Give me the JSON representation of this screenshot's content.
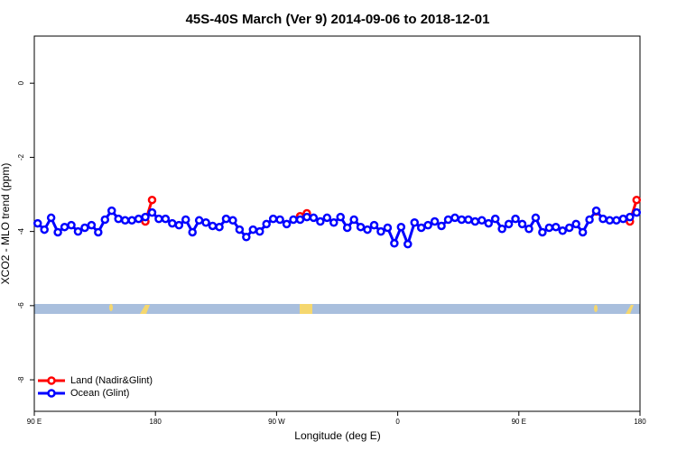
{
  "chart_data": {
    "type": "line",
    "title": "45S-40S March (Ver 9)   2014-09-06 to 2018-12-01",
    "x_label": "Longitude (deg E)",
    "y_label": "XCO2 - MLO trend (ppm)",
    "x": [
      92.5,
      97.5,
      102.5,
      107.5,
      112.5,
      117.5,
      122.5,
      127.5,
      132.5,
      137.5,
      142.5,
      147.5,
      152.5,
      157.5,
      162.5,
      167.5,
      172.5,
      177.5,
      182.5,
      187.5,
      192.5,
      197.5,
      202.5,
      207.5,
      212.5,
      217.5,
      222.5,
      227.5,
      232.5,
      237.5,
      242.5,
      247.5,
      252.5,
      257.5,
      262.5,
      267.5,
      272.5,
      277.5,
      282.5,
      287.5,
      292.5,
      297.5,
      302.5,
      307.5,
      312.5,
      317.5,
      322.5,
      327.5,
      332.5,
      337.5,
      342.5,
      347.5,
      352.5,
      357.5,
      362.5,
      367.5,
      372.5,
      377.5,
      382.5,
      387.5,
      392.5,
      397.5,
      402.5,
      407.5,
      412.5,
      417.5,
      422.5,
      427.5,
      432.5,
      437.5,
      442.5,
      447.5,
      452.5,
      457.5,
      462.5,
      467.5,
      472.5,
      477.5,
      482.5,
      487.5,
      492.5,
      497.5,
      502.5,
      507.5,
      512.5,
      517.5,
      522.5,
      527.5,
      532.5,
      537.5
    ],
    "series": [
      {
        "name": "Land (Nadir&Glint)",
        "color": "#ff0000",
        "values": [
          null,
          null,
          null,
          null,
          null,
          null,
          null,
          null,
          null,
          null,
          null,
          null,
          null,
          null,
          null,
          null,
          -3.73,
          -3.15,
          null,
          null,
          null,
          null,
          null,
          null,
          null,
          null,
          null,
          null,
          null,
          null,
          null,
          null,
          null,
          null,
          null,
          null,
          null,
          null,
          null,
          -3.59,
          -3.51,
          null,
          null,
          null,
          null,
          null,
          null,
          null,
          null,
          null,
          null,
          null,
          null,
          null,
          null,
          null,
          null,
          null,
          null,
          null,
          null,
          null,
          null,
          null,
          null,
          null,
          null,
          null,
          null,
          null,
          null,
          null,
          null,
          null,
          null,
          null,
          null,
          null,
          null,
          null,
          null,
          null,
          null,
          -3.46,
          null,
          null,
          null,
          null,
          -3.73,
          -3.15
        ]
      },
      {
        "name": "Ocean (Glint)",
        "color": "#0000ff",
        "values": [
          -3.78,
          -3.95,
          -3.63,
          -4.02,
          -3.88,
          -3.83,
          -4.0,
          -3.9,
          -3.83,
          -4.02,
          -3.68,
          -3.44,
          -3.66,
          -3.7,
          -3.7,
          -3.66,
          -3.61,
          -3.49,
          -3.66,
          -3.66,
          -3.78,
          -3.83,
          -3.68,
          -4.02,
          -3.7,
          -3.76,
          -3.85,
          -3.88,
          -3.66,
          -3.7,
          -3.95,
          -4.15,
          -3.95,
          -4.0,
          -3.8,
          -3.66,
          -3.68,
          -3.8,
          -3.68,
          -3.68,
          -3.61,
          -3.63,
          -3.73,
          -3.63,
          -3.76,
          -3.61,
          -3.9,
          -3.68,
          -3.88,
          -3.95,
          -3.83,
          -4.0,
          -3.9,
          -4.32,
          -3.88,
          -4.34,
          -3.76,
          -3.9,
          -3.83,
          -3.73,
          -3.85,
          -3.68,
          -3.63,
          -3.68,
          -3.68,
          -3.73,
          -3.7,
          -3.78,
          -3.66,
          -3.93,
          -3.8,
          -3.66,
          -3.8,
          -3.93,
          -3.63,
          -4.02,
          -3.9,
          -3.88,
          -3.98,
          -3.9,
          -3.8,
          -4.02,
          -3.68,
          -3.44,
          -3.66,
          -3.7,
          -3.7,
          -3.66,
          -3.61,
          -3.49
        ]
      }
    ],
    "xlim": [
      90,
      540
    ],
    "xticks": [
      {
        "value": 90,
        "label": "90 E"
      },
      {
        "value": 180,
        "label": "180"
      },
      {
        "value": 270,
        "label": "90 W"
      },
      {
        "value": 360,
        "label": "0"
      },
      {
        "value": 450,
        "label": "90 E"
      },
      {
        "value": 540,
        "label": "180"
      }
    ],
    "ylim": [
      -8.85,
      1.27
    ],
    "yticks": [
      0,
      -2,
      -4,
      -6,
      -8
    ],
    "legend": "bottom-left"
  }
}
